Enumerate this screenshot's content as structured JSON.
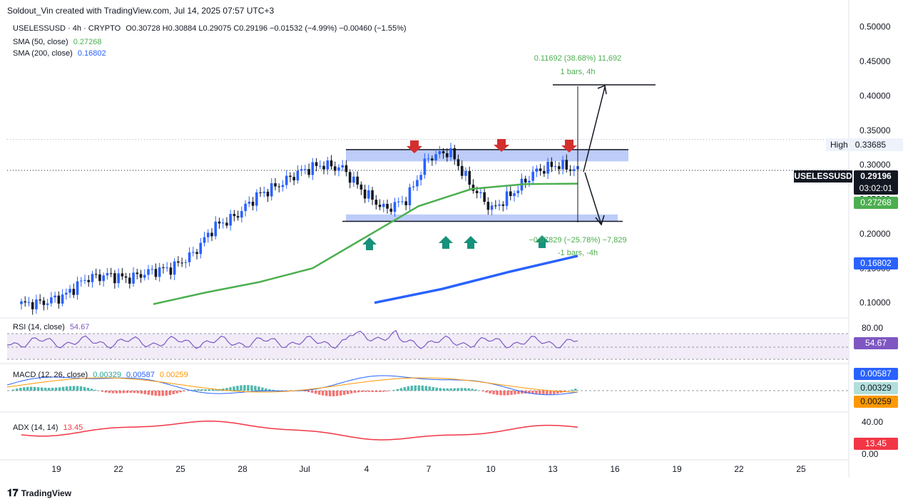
{
  "header": {
    "credit": "Soldout_Vin created with TradingView.com, Jul 14, 2025 07:57 UTC+3"
  },
  "legend": {
    "symbol": "USELESSUSD · 4h · CRYPTO",
    "ohlc": "O0.30728  H0.30884  L0.29075  C0.29196  −0.01532 (−4.99%)  −0.00460 (−1.55%)",
    "sma50_label": "SMA (50, close)",
    "sma50_value": "0.27268",
    "sma200_label": "SMA (200, close)",
    "sma200_value": "0.16802",
    "rsi_label": "RSI (14, close)",
    "rsi_value": "54.67",
    "macd_label": "MACD (12, 26, close)",
    "macd_v1": "0.00329",
    "macd_v2": "0.00587",
    "macd_v3": "0.00259",
    "adx_label": "ADX (14, 14)",
    "adx_value": "13.45"
  },
  "price_labels": {
    "high_label": "High",
    "high_value": "0.33685",
    "symbol": "USELESSUSD",
    "last": "0.29196",
    "countdown": "03:02:01",
    "sma50": "0.27268",
    "sma200": "0.16802",
    "rsi": "54.67",
    "macd_a": "0.00587",
    "macd_b": "0.00329",
    "macd_c": "0.00259",
    "adx": "13.45"
  },
  "annotations": {
    "up_measure": "0.11692 (38.68%) 11,692",
    "up_bars": "1 bars, 4h",
    "down_measure": "−0.07829 (−25.78%) −7,829",
    "down_bars": "-1 bars, -4h"
  },
  "footer": {
    "logo": "TradingView"
  },
  "colors": {
    "bull": "#2962ff",
    "bear": "#131722",
    "sma50": "#4caf50",
    "sma200": "#2962ff",
    "rsi": "#7e57c2",
    "adx": "#f23645",
    "zone": "#b2c3f7",
    "arrow_down": "#d32f2f",
    "arrow_up": "#16917c"
  },
  "chart_data": {
    "type": "line",
    "series": [
      {
        "name": "SMA (50, close)",
        "x": [
          "Jun 22",
          "Jun 25",
          "Jun 28",
          "Jul 1",
          "Jul 4",
          "Jul 7",
          "Jul 10",
          "Jul 13",
          "Jul 14"
        ],
        "values": [
          0.098,
          0.115,
          0.13,
          0.15,
          0.195,
          0.24,
          0.265,
          0.272,
          0.2727
        ]
      },
      {
        "name": "SMA (200, close)",
        "x": [
          "Jul 5",
          "Jul 8",
          "Jul 11",
          "Jul 14"
        ],
        "values": [
          0.1,
          0.12,
          0.145,
          0.168
        ]
      }
    ],
    "price_path": [
      0.098,
      0.1,
      0.11,
      0.135,
      0.14,
      0.135,
      0.145,
      0.15,
      0.17,
      0.21,
      0.225,
      0.255,
      0.27,
      0.29,
      0.3,
      0.295,
      0.26,
      0.235,
      0.25,
      0.31,
      0.32,
      0.27,
      0.235,
      0.26,
      0.29,
      0.3,
      0.292
    ],
    "resistance_zone": [
      0.305,
      0.322
    ],
    "support_zone": [
      0.218,
      0.228
    ],
    "ylim": [
      0.08,
      0.51
    ],
    "y_ticks": [
      "0.50000",
      "0.45000",
      "0.40000",
      "0.35000",
      "0.30000",
      "0.25000",
      "0.20000",
      "0.15000",
      "0.10000"
    ],
    "x_ticks": [
      "19",
      "22",
      "25",
      "28",
      "Jul",
      "4",
      "7",
      "10",
      "13",
      "16",
      "19",
      "22",
      "25"
    ],
    "rsi": {
      "current": 54.67,
      "bands": [
        30,
        70
      ],
      "ticks": [
        "80.00"
      ]
    },
    "macd": {
      "macd": 0.00587,
      "signal": 0.00329,
      "hist": 0.00259
    },
    "adx": {
      "current": 13.45,
      "ticks": [
        "40.00",
        "0.00"
      ]
    }
  }
}
